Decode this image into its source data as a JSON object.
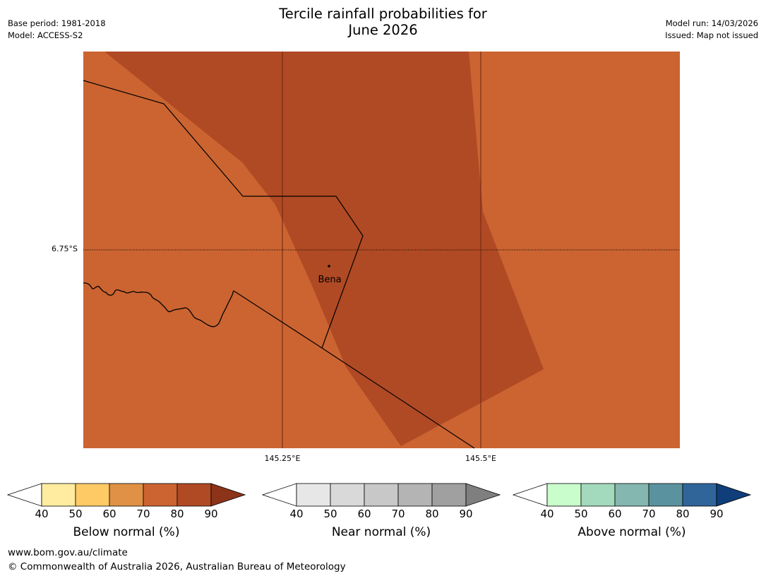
{
  "title_line1": "Tercile rainfall probabilities for",
  "title_line2": "June 2026",
  "meta_left": {
    "base_period": "Base period: 1981-2018",
    "model": "Model: ACCESS-S2"
  },
  "meta_right": {
    "model_run": "Model run: 14/03/2026",
    "issued": "Issued: Map not issued"
  },
  "map": {
    "lat_label": "6.75°S",
    "lon_labels": [
      "145.25°E",
      "145.5°E"
    ],
    "place": "Bena",
    "colors": {
      "prob_70_80": "#cb6431",
      "prob_80_90": "#b04a24"
    }
  },
  "legends": [
    {
      "title": "Below normal (%)",
      "ticks": [
        "40",
        "50",
        "60",
        "70",
        "80",
        "90"
      ],
      "colors": [
        "#ffffff",
        "#ffeca1",
        "#fdca66",
        "#e09145",
        "#cb6431",
        "#b04a24",
        "#8c3319"
      ]
    },
    {
      "title": "Near normal (%)",
      "ticks": [
        "40",
        "50",
        "60",
        "70",
        "80",
        "90"
      ],
      "colors": [
        "#ffffff",
        "#e7e7e7",
        "#d9d9d9",
        "#c8c8c8",
        "#b4b4b4",
        "#a0a0a0",
        "#7f7f7f"
      ]
    },
    {
      "title": "Above normal (%)",
      "ticks": [
        "40",
        "50",
        "60",
        "70",
        "80",
        "90"
      ],
      "colors": [
        "#ffffff",
        "#c9fdcb",
        "#a3d9bc",
        "#83b7b0",
        "#5b92a0",
        "#30659a",
        "#0f3e7a"
      ]
    }
  ],
  "footer": {
    "url": "www.bom.gov.au/climate",
    "copyright": "© Commonwealth of Australia 2026, Australian Bureau of Meteorology"
  }
}
